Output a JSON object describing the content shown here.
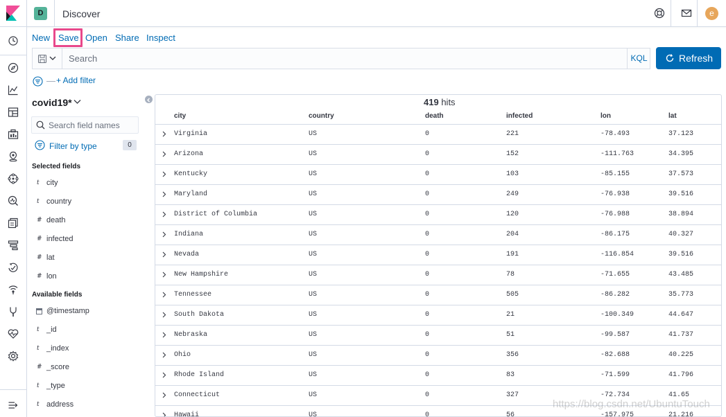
{
  "header": {
    "space_initial": "D",
    "app_title": "Discover",
    "user_initial": "e",
    "icons": [
      "kibana-logo-icon",
      "help-icon",
      "mail-icon"
    ]
  },
  "sidenav": {
    "icons": [
      "clock-icon",
      "discover-compass-icon",
      "visualize-icon",
      "dashboard-icon",
      "canvas-icon",
      "maps-icon",
      "ml-icon",
      "metrics-icon",
      "logs-icon",
      "apm-icon",
      "uptime-icon",
      "siem-icon",
      "dev-tools-icon",
      "monitoring-icon",
      "management-gear-icon",
      "collapse-menu-icon"
    ]
  },
  "topmenu": {
    "new": "New",
    "save": "Save",
    "open": "Open",
    "share": "Share",
    "inspect": "Inspect"
  },
  "querybar": {
    "placeholder": "Search",
    "language": "KQL",
    "refresh": "Refresh"
  },
  "filters": {
    "separator": "—",
    "add_filter": "+ Add filter"
  },
  "sidebar": {
    "index_pattern": "covid19*",
    "search_placeholder": "Search field names",
    "filter_by_type": "Filter by type",
    "filter_count": "0",
    "selected_title": "Selected fields",
    "selected_fields": [
      {
        "type": "t",
        "name": "city"
      },
      {
        "type": "t",
        "name": "country"
      },
      {
        "type": "#",
        "name": "death"
      },
      {
        "type": "#",
        "name": "infected"
      },
      {
        "type": "#",
        "name": "lat"
      },
      {
        "type": "#",
        "name": "lon"
      }
    ],
    "available_title": "Available fields",
    "available_fields": [
      {
        "type": "date",
        "name": "@timestamp"
      },
      {
        "type": "t",
        "name": "_id"
      },
      {
        "type": "t",
        "name": "_index"
      },
      {
        "type": "#",
        "name": "_score"
      },
      {
        "type": "t",
        "name": "_type"
      },
      {
        "type": "t",
        "name": "address"
      }
    ]
  },
  "table": {
    "hits_count": "419",
    "hits_label": "hits",
    "columns": [
      "city",
      "country",
      "death",
      "infected",
      "lon",
      "lat"
    ],
    "rows": [
      [
        "Virginia",
        "US",
        "0",
        "221",
        "-78.493",
        "37.123"
      ],
      [
        "Arizona",
        "US",
        "0",
        "152",
        "-111.763",
        "34.395"
      ],
      [
        "Kentucky",
        "US",
        "0",
        "103",
        "-85.155",
        "37.573"
      ],
      [
        "Maryland",
        "US",
        "0",
        "249",
        "-76.938",
        "39.516"
      ],
      [
        "District of Columbia",
        "US",
        "0",
        "120",
        "-76.988",
        "38.894"
      ],
      [
        "Indiana",
        "US",
        "0",
        "204",
        "-86.175",
        "40.327"
      ],
      [
        "Nevada",
        "US",
        "0",
        "191",
        "-116.854",
        "39.516"
      ],
      [
        "New Hampshire",
        "US",
        "0",
        "78",
        "-71.655",
        "43.485"
      ],
      [
        "Tennessee",
        "US",
        "0",
        "505",
        "-86.282",
        "35.773"
      ],
      [
        "South Dakota",
        "US",
        "0",
        "21",
        "-100.349",
        "44.647"
      ],
      [
        "Nebraska",
        "US",
        "0",
        "51",
        "-99.587",
        "41.737"
      ],
      [
        "Ohio",
        "US",
        "0",
        "356",
        "-82.688",
        "40.225"
      ],
      [
        "Rhode Island",
        "US",
        "0",
        "83",
        "-71.599",
        "41.796"
      ],
      [
        "Connecticut",
        "US",
        "0",
        "327",
        "-72.734",
        "41.65"
      ],
      [
        "Hawaii",
        "US",
        "0",
        "56",
        "-157.975",
        "21.216"
      ]
    ]
  },
  "watermark": "https://blog.csdn.net/UbuntuTouch",
  "colors": {
    "link": "#006bb4",
    "highlight": "#e8488b",
    "space": "#54b399",
    "user": "#e7a65b"
  }
}
